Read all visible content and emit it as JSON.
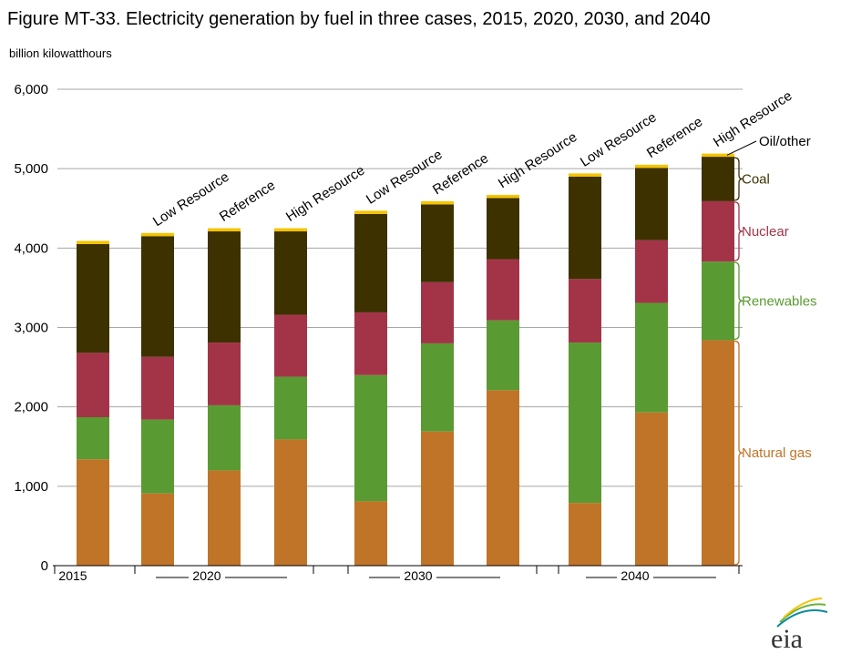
{
  "chart_data": {
    "type": "bar",
    "stacked": true,
    "title": "Figure MT-33. Electricity generation by fuel in three cases, 2015, 2020, 2030, and 2040",
    "unit_label": "billion kilowatthours",
    "ylim": [
      0,
      6000
    ],
    "yticks": [
      "0",
      "1,000",
      "2,000",
      "3,000",
      "4,000",
      "5,000",
      "6,000"
    ],
    "groups": [
      {
        "label": "2015",
        "bars": [
          {
            "case": ""
          }
        ]
      },
      {
        "label": "2020",
        "bars": [
          {
            "case": "Low Resource"
          },
          {
            "case": "Reference"
          },
          {
            "case": "High Resource"
          }
        ]
      },
      {
        "label": "2030",
        "bars": [
          {
            "case": "Low Resource"
          },
          {
            "case": "Reference"
          },
          {
            "case": "High Resource"
          }
        ]
      },
      {
        "label": "2040",
        "bars": [
          {
            "case": "Low Resource"
          },
          {
            "case": "Reference"
          },
          {
            "case": "High Resource"
          }
        ]
      }
    ],
    "series": [
      {
        "name": "Natural gas",
        "color": "#c07428",
        "values": [
          1340,
          910,
          1200,
          1590,
          810,
          1690,
          2210,
          790,
          1930,
          2840
        ]
      },
      {
        "name": "Renewables",
        "color": "#5a9a32",
        "values": [
          530,
          930,
          820,
          790,
          1590,
          1110,
          880,
          2020,
          1380,
          990
        ]
      },
      {
        "name": "Nuclear",
        "color": "#a33448",
        "values": [
          810,
          790,
          790,
          780,
          790,
          770,
          770,
          800,
          790,
          760
        ]
      },
      {
        "name": "Coal",
        "color": "#3d3100",
        "values": [
          1370,
          1520,
          1400,
          1050,
          1240,
          980,
          770,
          1290,
          910,
          560
        ]
      },
      {
        "name": "Oil/other",
        "color": "#f5c400",
        "values": [
          40,
          40,
          40,
          40,
          40,
          40,
          40,
          40,
          40,
          40
        ]
      }
    ],
    "grid": true,
    "legend_placement": "right"
  },
  "branding": {
    "logo_text": "eia"
  }
}
